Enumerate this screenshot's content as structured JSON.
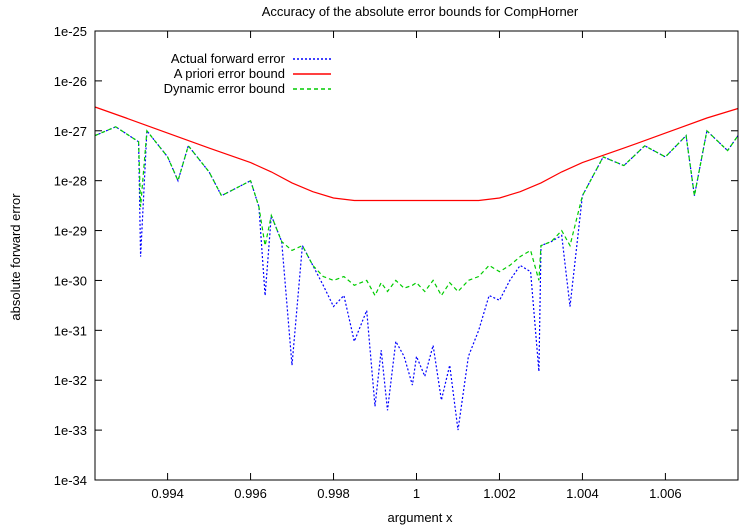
{
  "chart_data": {
    "type": "line",
    "title": "Accuracy of the absolute error bounds for CompHorner",
    "xlabel": "argument x",
    "ylabel": "absolute forward error",
    "xlim": [
      0.99225,
      1.00775
    ],
    "ylim": [
      1e-34,
      1e-25
    ],
    "yscale": "log",
    "x_ticks": [
      0.994,
      0.996,
      0.998,
      1,
      1.002,
      1.004,
      1.006
    ],
    "x_tick_labels": [
      "0.994",
      "0.996",
      "0.998",
      "1",
      "1.002",
      "1.004",
      "1.006"
    ],
    "y_ticks": [
      1e-34,
      1e-33,
      1e-32,
      1e-31,
      1e-30,
      1e-29,
      1e-28,
      1e-27,
      1e-26,
      1e-25
    ],
    "y_tick_labels": [
      "1e-34",
      "1e-33",
      "1e-32",
      "1e-31",
      "1e-30",
      "1e-29",
      "1e-28",
      "1e-27",
      "1e-26",
      "1e-25"
    ],
    "grid": false,
    "legend_position": "top-left",
    "series": [
      {
        "name": "Actual forward error",
        "color": "#0000ff",
        "style": "dotted",
        "x": [
          0.99225,
          0.99275,
          0.9933,
          0.99335,
          0.9935,
          0.994,
          0.99425,
          0.9945,
          0.995,
          0.9953,
          0.996,
          0.9962,
          0.99635,
          0.9965,
          0.99675,
          0.997,
          0.99725,
          0.9975,
          0.99775,
          0.998,
          0.99825,
          0.9985,
          0.9988,
          0.999,
          0.99915,
          0.9993,
          0.9995,
          0.9997,
          0.9999,
          1.0,
          1.0002,
          1.0004,
          1.0006,
          1.0008,
          1.001,
          1.00125,
          1.0015,
          1.00175,
          1.002,
          1.00225,
          1.0025,
          1.00275,
          1.00295,
          1.003,
          1.00325,
          1.0035,
          1.0037,
          1.004,
          1.0045,
          1.005,
          1.0055,
          1.006,
          1.0065,
          1.0067,
          1.007,
          1.0075,
          1.00775
        ],
        "y": [
          8e-28,
          1.2e-27,
          6e-28,
          3e-30,
          1e-27,
          3e-28,
          1e-28,
          5e-28,
          1.5e-28,
          5e-29,
          1e-28,
          3e-29,
          5e-31,
          2e-29,
          6e-30,
          2e-32,
          5e-30,
          2e-30,
          8e-31,
          3e-31,
          5e-31,
          6e-32,
          2.5e-31,
          3e-33,
          4e-32,
          2.5e-33,
          6e-32,
          3e-32,
          8e-33,
          3e-32,
          1.2e-32,
          5e-32,
          4e-33,
          2e-32,
          1e-33,
          3e-32,
          1e-31,
          5e-31,
          4e-31,
          1e-30,
          2e-30,
          1.5e-30,
          1.5e-32,
          5e-30,
          6e-30,
          8e-30,
          3e-31,
          5e-29,
          3e-28,
          2e-28,
          5e-28,
          3e-28,
          8e-28,
          5e-29,
          1e-27,
          4e-28,
          8e-28
        ]
      },
      {
        "name": "A priori error bound",
        "color": "#ff0000",
        "style": "solid",
        "x": [
          0.99225,
          0.993,
          0.994,
          0.995,
          0.996,
          0.9965,
          0.997,
          0.9975,
          0.998,
          0.9985,
          0.999,
          0.9995,
          1.0,
          1.0005,
          1.001,
          1.0015,
          1.002,
          1.0025,
          1.003,
          1.0035,
          1.004,
          1.005,
          1.006,
          1.007,
          1.00775
        ],
        "y": [
          3e-27,
          1.8e-27,
          9e-28,
          4.5e-28,
          2.3e-28,
          1.5e-28,
          9e-29,
          6e-29,
          4.5e-29,
          4e-29,
          4e-29,
          4e-29,
          4e-29,
          4e-29,
          4e-29,
          4e-29,
          4.5e-29,
          6e-29,
          9e-29,
          1.5e-28,
          2.3e-28,
          4.5e-28,
          9e-28,
          1.8e-27,
          2.8e-27
        ]
      },
      {
        "name": "Dynamic error bound",
        "color": "#00cc00",
        "style": "dashed",
        "x": [
          0.99225,
          0.99275,
          0.9933,
          0.99335,
          0.9935,
          0.994,
          0.99425,
          0.9945,
          0.995,
          0.9953,
          0.996,
          0.9962,
          0.99635,
          0.9965,
          0.99675,
          0.997,
          0.99725,
          0.9975,
          0.99775,
          0.998,
          0.99825,
          0.9985,
          0.9988,
          0.999,
          0.99915,
          0.9993,
          0.9995,
          0.9997,
          0.9999,
          1.0,
          1.0002,
          1.0004,
          1.0006,
          1.0008,
          1.001,
          1.00125,
          1.0015,
          1.00175,
          1.002,
          1.00225,
          1.0025,
          1.00275,
          1.00295,
          1.003,
          1.00325,
          1.0035,
          1.0037,
          1.004,
          1.0045,
          1.005,
          1.0055,
          1.006,
          1.0065,
          1.0067,
          1.007,
          1.0075,
          1.00775
        ],
        "y": [
          8e-28,
          1.2e-27,
          6e-28,
          3e-29,
          1e-27,
          3e-28,
          1e-28,
          5e-28,
          1.5e-28,
          5e-29,
          1e-28,
          3e-29,
          5e-30,
          2e-29,
          6e-30,
          4e-30,
          5e-30,
          2e-30,
          1.2e-30,
          1e-30,
          1.2e-30,
          8e-31,
          1e-30,
          5e-31,
          9e-31,
          6e-31,
          1e-30,
          7e-31,
          8e-31,
          9e-31,
          6e-31,
          1e-30,
          5e-31,
          9e-31,
          6e-31,
          1e-30,
          1.2e-30,
          2e-30,
          1.5e-30,
          2e-30,
          3e-30,
          4e-30,
          1e-30,
          5e-30,
          6e-30,
          1e-29,
          5e-30,
          5e-29,
          3e-28,
          2e-28,
          5e-28,
          3e-28,
          8e-28,
          5e-29,
          1e-27,
          4e-28,
          8e-28
        ]
      }
    ]
  }
}
